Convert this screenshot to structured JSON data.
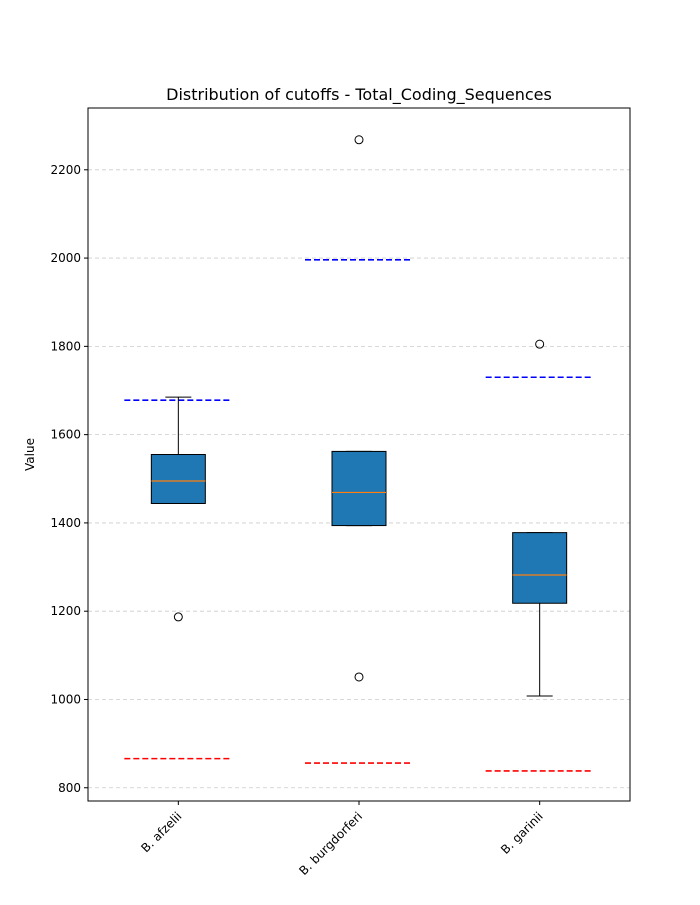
{
  "chart_data": {
    "type": "box",
    "title": "Distribution of cutoffs - Total_Coding_Sequences",
    "xlabel": "",
    "ylabel": "Value",
    "ylim": [
      770,
      2340
    ],
    "yticks": [
      800,
      1000,
      1200,
      1400,
      1600,
      1800,
      2000,
      2200
    ],
    "grid": "y-dashed",
    "categories": [
      "B. afzelii",
      "B. burgdorferi",
      "B. garinii"
    ],
    "boxes": [
      {
        "category": "B. afzelii",
        "whisker_low": 1444,
        "q1": 1444,
        "median": 1495,
        "q3": 1555,
        "whisker_high": 1685,
        "outliers": [
          1187
        ],
        "upper_cutoff": 1678,
        "lower_cutoff": 866
      },
      {
        "category": "B. burgdorferi",
        "whisker_low": 1394,
        "q1": 1394,
        "median": 1469,
        "q3": 1562,
        "whisker_high": 1562,
        "outliers": [
          2268,
          1051
        ],
        "upper_cutoff": 1996,
        "lower_cutoff": 856
      },
      {
        "category": "B. garinii",
        "whisker_low": 1008,
        "q1": 1218,
        "median": 1282,
        "q3": 1378,
        "whisker_high": 1378,
        "outliers": [
          1805
        ],
        "upper_cutoff": 1730,
        "lower_cutoff": 838
      }
    ],
    "colors": {
      "box_fill": "#1f77b4",
      "median": "#ff7f0e",
      "upper_cutoff": "#0000ff",
      "lower_cutoff": "#ff0000",
      "grid": "#cccccc"
    }
  }
}
